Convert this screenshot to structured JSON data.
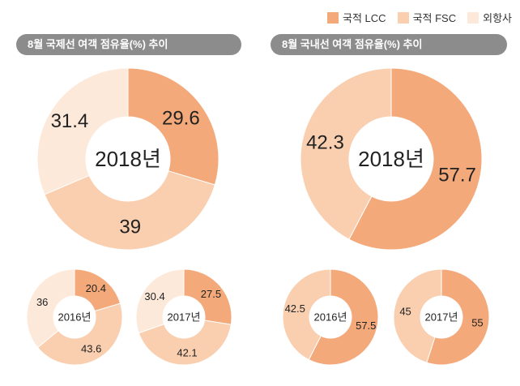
{
  "legend": {
    "items": [
      {
        "label": "국적 LCC",
        "color": "#f4a97a"
      },
      {
        "label": "국적 FSC",
        "color": "#f9cfb0"
      },
      {
        "label": "외항사",
        "color": "#fde9da"
      }
    ]
  },
  "sections": {
    "international_title": "8월 국제선 여객 점유율(%) 추이",
    "domestic_title": "8월 국내선 여객 점유율(%) 추이"
  },
  "chart_data": [
    {
      "type": "pie",
      "panel": "international",
      "center_label": "2018년",
      "categories": [
        "국적 LCC",
        "국적 FSC",
        "외항사"
      ],
      "values": [
        29.6,
        39,
        31.4
      ]
    },
    {
      "type": "pie",
      "panel": "international",
      "center_label": "2016년",
      "categories": [
        "국적 LCC",
        "국적 FSC",
        "외항사"
      ],
      "values": [
        20.4,
        43.6,
        36
      ]
    },
    {
      "type": "pie",
      "panel": "international",
      "center_label": "2017년",
      "categories": [
        "국적 LCC",
        "국적 FSC",
        "외항사"
      ],
      "values": [
        27.5,
        42.1,
        30.4
      ]
    },
    {
      "type": "pie",
      "panel": "domestic",
      "center_label": "2018년",
      "categories": [
        "국적 LCC",
        "국적 FSC"
      ],
      "values": [
        57.7,
        42.3
      ]
    },
    {
      "type": "pie",
      "panel": "domestic",
      "center_label": "2016년",
      "categories": [
        "국적 LCC",
        "국적 FSC"
      ],
      "values": [
        57.5,
        42.5
      ]
    },
    {
      "type": "pie",
      "panel": "domestic",
      "center_label": "2017년",
      "categories": [
        "국적 LCC",
        "국적 FSC"
      ],
      "values": [
        55,
        45
      ]
    }
  ]
}
